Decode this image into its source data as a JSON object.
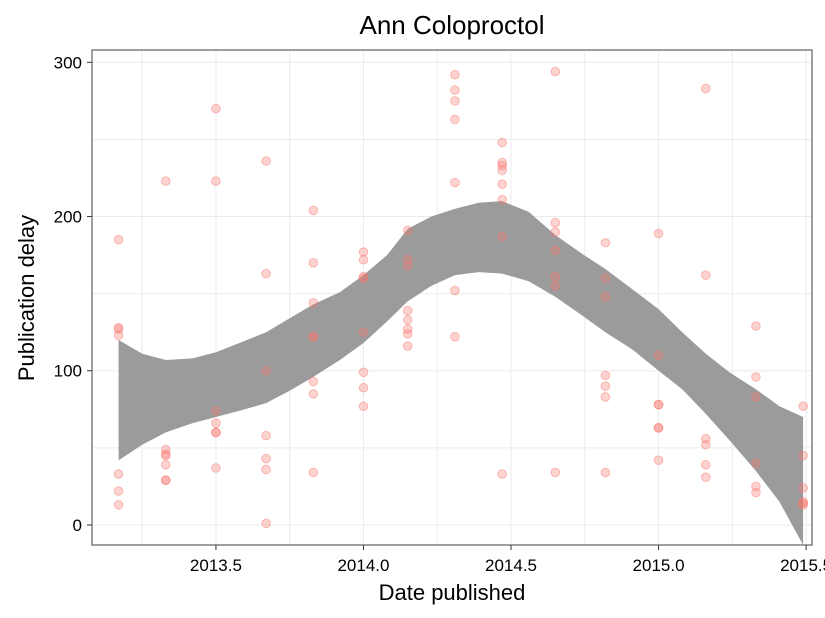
{
  "chart_data": {
    "type": "scatter",
    "title": "Ann Coloproctol",
    "xlabel": "Date published",
    "ylabel": "Publication delay",
    "xlim": [
      2013.08,
      2015.52
    ],
    "ylim": [
      -13,
      308
    ],
    "x_ticks": [
      2013.5,
      2014.0,
      2014.5,
      2015.0,
      2015.5
    ],
    "x_tick_labels": [
      "2013.5",
      "2014.0",
      "2014.5",
      "2015.0",
      "2015.5"
    ],
    "y_ticks": [
      0,
      100,
      200,
      300
    ],
    "y_tick_labels": [
      "0",
      "100",
      "200",
      "300"
    ],
    "grid": true,
    "colors": {
      "points": "#f8766d",
      "band": "#999999",
      "panel_border": "#7f7f7f",
      "grid": "#ebebeb"
    },
    "points": [
      {
        "x": 2013.17,
        "y": 185
      },
      {
        "x": 2013.17,
        "y": 128
      },
      {
        "x": 2013.17,
        "y": 127
      },
      {
        "x": 2013.17,
        "y": 123
      },
      {
        "x": 2013.17,
        "y": 33
      },
      {
        "x": 2013.17,
        "y": 22
      },
      {
        "x": 2013.17,
        "y": 13
      },
      {
        "x": 2013.33,
        "y": 223
      },
      {
        "x": 2013.33,
        "y": 49
      },
      {
        "x": 2013.33,
        "y": 46
      },
      {
        "x": 2013.33,
        "y": 45
      },
      {
        "x": 2013.33,
        "y": 39
      },
      {
        "x": 2013.33,
        "y": 29
      },
      {
        "x": 2013.33,
        "y": 29
      },
      {
        "x": 2013.5,
        "y": 270
      },
      {
        "x": 2013.5,
        "y": 223
      },
      {
        "x": 2013.5,
        "y": 74
      },
      {
        "x": 2013.5,
        "y": 66
      },
      {
        "x": 2013.5,
        "y": 60
      },
      {
        "x": 2013.5,
        "y": 60
      },
      {
        "x": 2013.5,
        "y": 37
      },
      {
        "x": 2013.67,
        "y": 236
      },
      {
        "x": 2013.67,
        "y": 163
      },
      {
        "x": 2013.67,
        "y": 100
      },
      {
        "x": 2013.67,
        "y": 58
      },
      {
        "x": 2013.67,
        "y": 43
      },
      {
        "x": 2013.67,
        "y": 36
      },
      {
        "x": 2013.67,
        "y": 1
      },
      {
        "x": 2013.83,
        "y": 204
      },
      {
        "x": 2013.83,
        "y": 170
      },
      {
        "x": 2013.83,
        "y": 144
      },
      {
        "x": 2013.83,
        "y": 122
      },
      {
        "x": 2013.83,
        "y": 122
      },
      {
        "x": 2013.83,
        "y": 93
      },
      {
        "x": 2013.83,
        "y": 85
      },
      {
        "x": 2013.83,
        "y": 34
      },
      {
        "x": 2014.0,
        "y": 177
      },
      {
        "x": 2014.0,
        "y": 172
      },
      {
        "x": 2014.0,
        "y": 161
      },
      {
        "x": 2014.0,
        "y": 160
      },
      {
        "x": 2014.0,
        "y": 125
      },
      {
        "x": 2014.0,
        "y": 99
      },
      {
        "x": 2014.0,
        "y": 89
      },
      {
        "x": 2014.0,
        "y": 77
      },
      {
        "x": 2014.15,
        "y": 191
      },
      {
        "x": 2014.15,
        "y": 172
      },
      {
        "x": 2014.15,
        "y": 168
      },
      {
        "x": 2014.15,
        "y": 139
      },
      {
        "x": 2014.15,
        "y": 133
      },
      {
        "x": 2014.15,
        "y": 127
      },
      {
        "x": 2014.15,
        "y": 124
      },
      {
        "x": 2014.15,
        "y": 116
      },
      {
        "x": 2014.31,
        "y": 292
      },
      {
        "x": 2014.31,
        "y": 282
      },
      {
        "x": 2014.31,
        "y": 275
      },
      {
        "x": 2014.31,
        "y": 263
      },
      {
        "x": 2014.31,
        "y": 222
      },
      {
        "x": 2014.31,
        "y": 152
      },
      {
        "x": 2014.31,
        "y": 122
      },
      {
        "x": 2014.47,
        "y": 248
      },
      {
        "x": 2014.47,
        "y": 235
      },
      {
        "x": 2014.47,
        "y": 233
      },
      {
        "x": 2014.47,
        "y": 230
      },
      {
        "x": 2014.47,
        "y": 221
      },
      {
        "x": 2014.47,
        "y": 211
      },
      {
        "x": 2014.47,
        "y": 187
      },
      {
        "x": 2014.47,
        "y": 33
      },
      {
        "x": 2014.65,
        "y": 294
      },
      {
        "x": 2014.65,
        "y": 196
      },
      {
        "x": 2014.65,
        "y": 190
      },
      {
        "x": 2014.65,
        "y": 178
      },
      {
        "x": 2014.65,
        "y": 161
      },
      {
        "x": 2014.65,
        "y": 155
      },
      {
        "x": 2014.65,
        "y": 34
      },
      {
        "x": 2014.82,
        "y": 183
      },
      {
        "x": 2014.82,
        "y": 160
      },
      {
        "x": 2014.82,
        "y": 148
      },
      {
        "x": 2014.82,
        "y": 97
      },
      {
        "x": 2014.82,
        "y": 90
      },
      {
        "x": 2014.82,
        "y": 83
      },
      {
        "x": 2014.82,
        "y": 34
      },
      {
        "x": 2015.0,
        "y": 189
      },
      {
        "x": 2015.0,
        "y": 110
      },
      {
        "x": 2015.0,
        "y": 78
      },
      {
        "x": 2015.0,
        "y": 78
      },
      {
        "x": 2015.0,
        "y": 63
      },
      {
        "x": 2015.0,
        "y": 63
      },
      {
        "x": 2015.0,
        "y": 42
      },
      {
        "x": 2015.16,
        "y": 283
      },
      {
        "x": 2015.16,
        "y": 162
      },
      {
        "x": 2015.16,
        "y": 56
      },
      {
        "x": 2015.16,
        "y": 52
      },
      {
        "x": 2015.16,
        "y": 39
      },
      {
        "x": 2015.16,
        "y": 31
      },
      {
        "x": 2015.33,
        "y": 129
      },
      {
        "x": 2015.33,
        "y": 96
      },
      {
        "x": 2015.33,
        "y": 83
      },
      {
        "x": 2015.33,
        "y": 40
      },
      {
        "x": 2015.33,
        "y": 25
      },
      {
        "x": 2015.33,
        "y": 21
      },
      {
        "x": 2015.49,
        "y": 77
      },
      {
        "x": 2015.49,
        "y": 45
      },
      {
        "x": 2015.49,
        "y": 24
      },
      {
        "x": 2015.49,
        "y": 15
      },
      {
        "x": 2015.49,
        "y": 14
      },
      {
        "x": 2015.49,
        "y": 13
      }
    ],
    "smooth_band": {
      "x": [
        2013.17,
        2013.25,
        2013.33,
        2013.42,
        2013.5,
        2013.58,
        2013.67,
        2013.75,
        2013.83,
        2013.92,
        2014.0,
        2014.08,
        2014.15,
        2014.23,
        2014.31,
        2014.39,
        2014.47,
        2014.56,
        2014.65,
        2014.74,
        2014.82,
        2014.91,
        2015.0,
        2015.08,
        2015.16,
        2015.24,
        2015.33,
        2015.41,
        2015.49
      ],
      "upper": [
        120,
        111,
        107,
        108,
        112,
        118,
        125,
        134,
        143,
        151,
        162,
        175,
        192,
        200,
        205,
        209,
        210,
        203,
        188,
        176,
        166,
        153,
        140,
        125,
        111,
        99,
        88,
        77,
        70
      ],
      "lower": [
        42,
        52,
        60,
        66,
        70,
        74,
        79,
        87,
        96,
        107,
        118,
        132,
        145,
        155,
        162,
        164,
        163,
        158,
        148,
        136,
        125,
        114,
        100,
        88,
        72,
        55,
        35,
        15,
        -13
      ]
    }
  }
}
